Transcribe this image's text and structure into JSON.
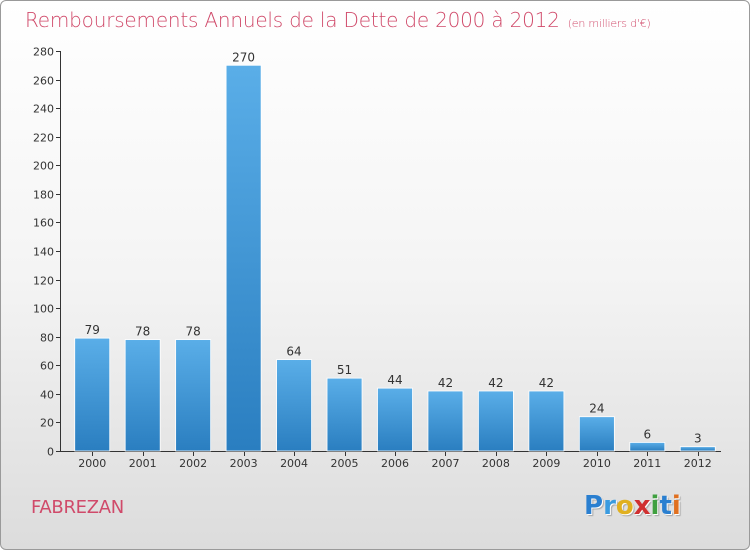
{
  "header": {
    "title": "Remboursements Annuels de la Dette de 2000 à 2012",
    "unit": "(en milliers d'€)"
  },
  "commune": "FABREZAN",
  "logo": {
    "letters": [
      {
        "char": "P",
        "color": "#2a7fd0"
      },
      {
        "char": "r",
        "color": "#3a9be0"
      },
      {
        "char": "o",
        "color": "#e0b020"
      },
      {
        "char": "x",
        "color": "#d03030"
      },
      {
        "char": "i",
        "color": "#40a040"
      },
      {
        "char": "t",
        "color": "#2a7fd0"
      },
      {
        "char": "i",
        "color": "#e07020"
      }
    ]
  },
  "colors": {
    "title": "#d04a6a",
    "bar_light": "#5aaee8",
    "bar_dark": "#2a7ec0"
  },
  "chart_data": {
    "type": "bar",
    "categories": [
      "2000",
      "2001",
      "2002",
      "2003",
      "2004",
      "2005",
      "2006",
      "2007",
      "2008",
      "2009",
      "2010",
      "2011",
      "2012"
    ],
    "values": [
      79,
      78,
      78,
      270,
      64,
      51,
      44,
      42,
      42,
      42,
      24,
      6,
      3
    ],
    "data_labels": [
      "79",
      "78",
      "78",
      "270",
      "64",
      "51",
      "44",
      "42",
      "42",
      "42",
      "24",
      "6",
      "3"
    ],
    "title": "Remboursements Annuels de la Dette de 2000 à 2012",
    "ylim": [
      0,
      280
    ],
    "yticks": [
      0,
      20,
      40,
      60,
      80,
      100,
      120,
      140,
      160,
      180,
      200,
      220,
      240,
      260,
      280
    ],
    "grid": false,
    "legend": "none"
  }
}
